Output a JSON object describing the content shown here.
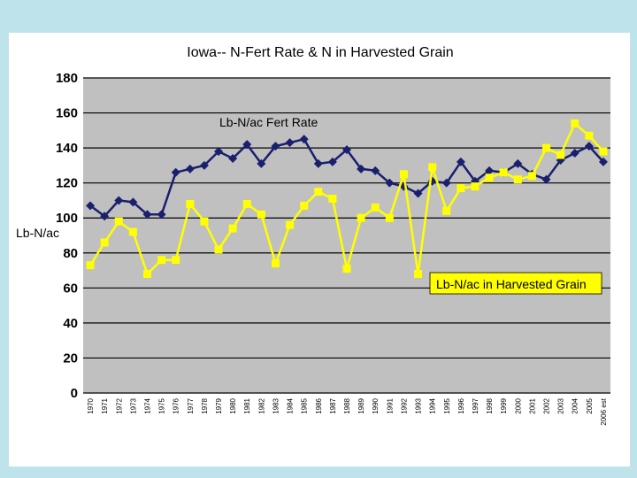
{
  "chart_data": {
    "type": "line",
    "title": "Iowa-- N-Fert Rate & N in Harvested Grain",
    "ylabel": "Lb-N/ac",
    "xlabel": "",
    "ylim": [
      0,
      180
    ],
    "yticks": [
      0,
      20,
      40,
      60,
      80,
      100,
      120,
      140,
      160,
      180
    ],
    "grid": true,
    "categories": [
      "1970",
      "1971",
      "1972",
      "1973",
      "1974",
      "1975",
      "1976",
      "1977",
      "1978",
      "1979",
      "1980",
      "1981",
      "1982",
      "1983",
      "1984",
      "1985",
      "1986",
      "1987",
      "1988",
      "1989",
      "1990",
      "1991",
      "1992",
      "1993",
      "1994",
      "1995",
      "1996",
      "1997",
      "1998",
      "1999",
      "2000",
      "2001",
      "2002",
      "2003",
      "2004",
      "2005",
      "2006 est"
    ],
    "series": [
      {
        "name": "Lb-N/ac Fert Rate",
        "color": "#1a1f6e",
        "marker": "diamond",
        "values": [
          107,
          101,
          110,
          109,
          102,
          102,
          126,
          128,
          130,
          138,
          134,
          142,
          131,
          141,
          143,
          145,
          131,
          132,
          139,
          128,
          127,
          120,
          118,
          114,
          121,
          120,
          132,
          121,
          127,
          126,
          131,
          125,
          122,
          133,
          137,
          141,
          132
        ]
      },
      {
        "name": "Lb-N/ac in Harvested Grain",
        "color": "#ffff00",
        "marker": "square",
        "values": [
          73,
          86,
          98,
          92,
          68,
          76,
          76,
          108,
          98,
          82,
          94,
          108,
          102,
          74,
          96,
          107,
          115,
          111,
          71,
          100,
          106,
          100,
          125,
          68,
          129,
          104,
          117,
          118,
          123,
          126,
          122,
          124,
          140,
          136,
          154,
          147,
          138
        ]
      }
    ],
    "annotations": [
      "Lb-N/ac Fert Rate",
      "Lb-N/ac in Harvested Grain"
    ]
  }
}
